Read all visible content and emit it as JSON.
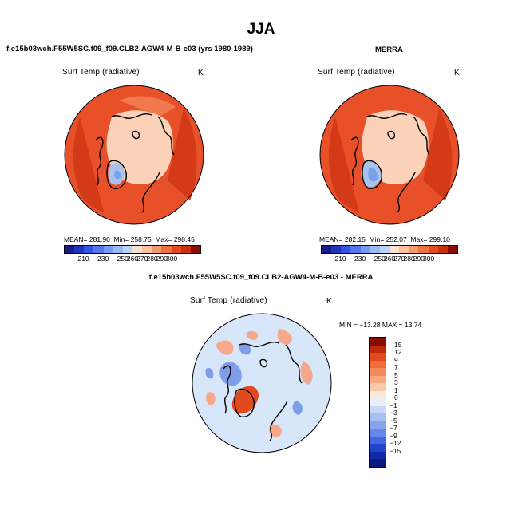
{
  "figure": {
    "season": "JJA"
  },
  "panels": [
    {
      "title": "f.e15b03wch.F55W5SC.f09_f09.CLB2-AGW4-M-B-e03 (yrs 1980-1989)",
      "variable": "Surf Temp (radiative)",
      "units": "K",
      "stats": {
        "mean_label": "MEAN=",
        "mean": "281.90",
        "min_label": "Min=",
        "min": "258.75",
        "max_label": "Max=",
        "max": "298.45"
      },
      "colorbar": {
        "colors": [
          "#1a1a8c",
          "#2233b8",
          "#3355dd",
          "#5577ee",
          "#7799f0",
          "#99bbf5",
          "#bbd4f8",
          "#fce0d0",
          "#fbc0a0",
          "#f59a70",
          "#ef7040",
          "#e54a1e",
          "#c8300f",
          "#8a0d05"
        ],
        "ticks": [
          "210",
          "230",
          "250",
          "260",
          "270",
          "280",
          "290",
          "300"
        ],
        "tick_positions": [
          1,
          3,
          5,
          6,
          7,
          8,
          9,
          10
        ]
      }
    },
    {
      "title": "MERRA",
      "variable": "Surf Temp (radiative)",
      "units": "K",
      "stats": {
        "mean_label": "MEAN=",
        "mean": "282.15",
        "min_label": "Min=",
        "min": "252.07",
        "max_label": "Max=",
        "max": "299.10"
      },
      "colorbar": {
        "colors": [
          "#1a1a8c",
          "#2233b8",
          "#3355dd",
          "#5577ee",
          "#7799f0",
          "#99bbf5",
          "#bbd4f8",
          "#fce0d0",
          "#fbc0a0",
          "#f59a70",
          "#ef7040",
          "#e54a1e",
          "#c8300f",
          "#8a0d05"
        ],
        "ticks": [
          "210",
          "230",
          "250",
          "260",
          "270",
          "280",
          "290",
          "300"
        ],
        "tick_positions": [
          1,
          3,
          5,
          6,
          7,
          8,
          9,
          10
        ]
      }
    },
    {
      "title": "f.e15b03wch.F55W5SC.f09_f09.CLB2-AGW4-M-B-e03 - MERRA",
      "variable": "Surf Temp (radiative)",
      "units": "K",
      "stats": {
        "text": "MIN = −13.28  MAX =  13.74"
      },
      "colorbar": {
        "colors": [
          "#8a0d05",
          "#c0280c",
          "#e04a1e",
          "#f06a3a",
          "#f4895a",
          "#f7a880",
          "#fac8aa",
          "#fde8d8",
          "#e8eefa",
          "#c8d8f8",
          "#a8c0f0",
          "#88a4ee",
          "#6688ea",
          "#4466e0",
          "#2244cc",
          "#102aa8",
          "#081a80"
        ],
        "ticks": [
          "15",
          "12",
          "9",
          "7",
          "5",
          "3",
          "1",
          "0",
          "−1",
          "−3",
          "−5",
          "−7",
          "−9",
          "−12",
          "−15"
        ]
      }
    }
  ],
  "map_colors": {
    "warm_land": "#e8502a",
    "hot_land": "#d23a18",
    "ocean_warm": "#f07a4e",
    "arctic": "#fbd2b8",
    "greenland_cold": "#a8c4ee",
    "greenland_colder": "#7aa2e6",
    "diff_bg": "#d8e6fa",
    "diff_pos": "#f6a88a",
    "diff_neg": "#7e9ee8",
    "greenland_diff": "#e04a1e",
    "coast": "#000000"
  }
}
